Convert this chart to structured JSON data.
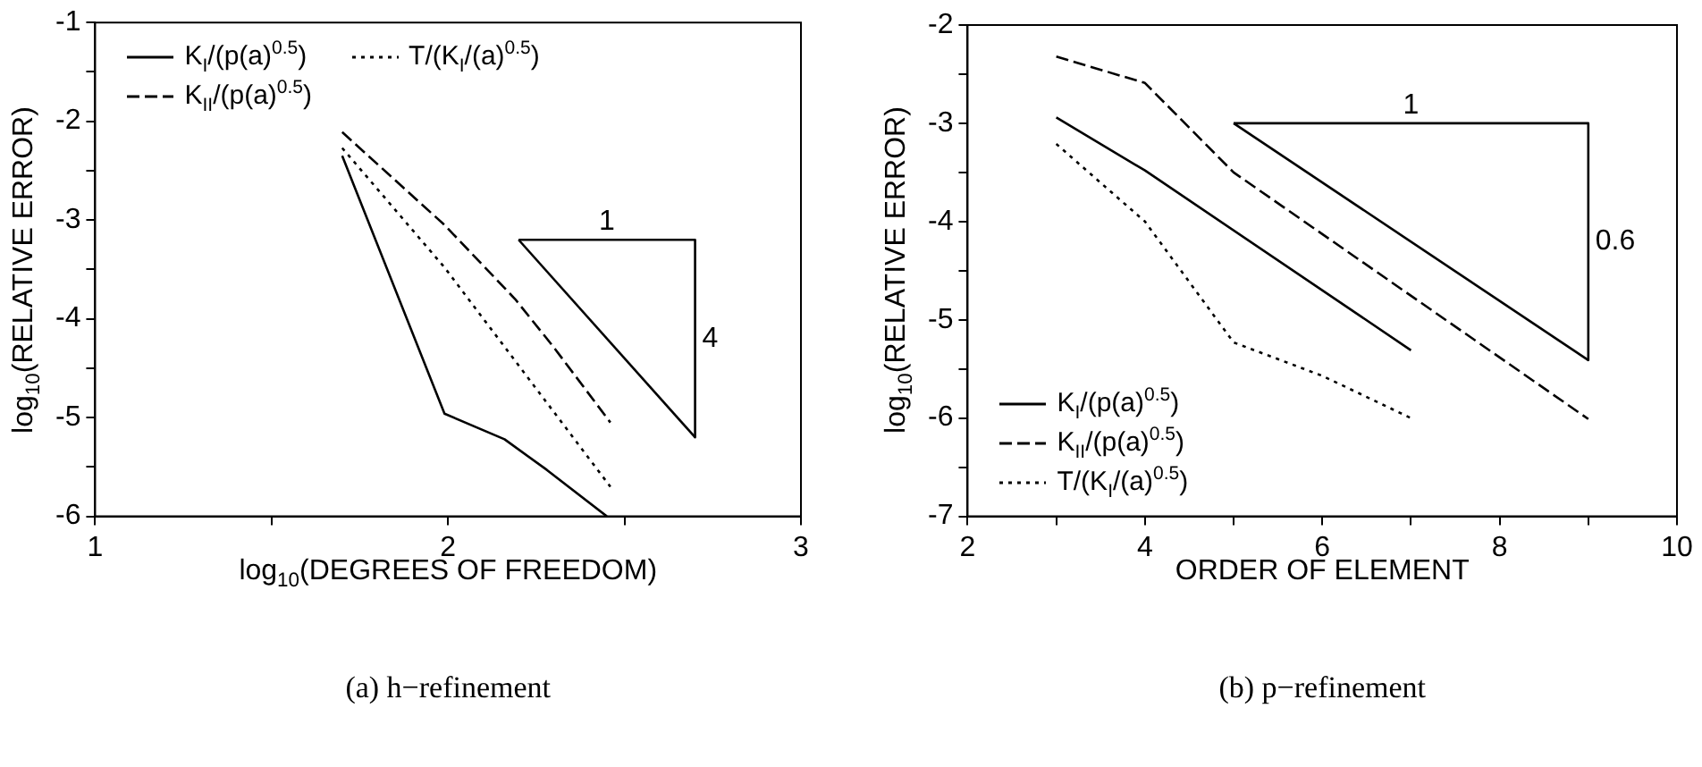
{
  "chart_data": [
    {
      "type": "line",
      "xlabel": "log$_{10}$(DEGREES OF FREEDOM)",
      "ylabel": "log$_{10}$(RELATIVE ERROR)",
      "xlim": [
        1,
        3
      ],
      "ylim": [
        -6,
        -1
      ],
      "xticks": [
        1,
        {
          "value": 1.5,
          "label": null
        },
        2,
        {
          "value": 2.5,
          "label": null
        },
        3
      ],
      "yticks": [
        -6,
        {
          "value": -5.5,
          "label": null
        },
        -5,
        {
          "value": -4.5,
          "label": null
        },
        -4,
        {
          "value": -3.5,
          "label": null
        },
        -3,
        {
          "value": -2.5,
          "label": null
        },
        -2,
        {
          "value": -1.5,
          "label": null
        },
        -1
      ],
      "grid": false,
      "legend": "top left",
      "marker": "none",
      "series": [
        {
          "name": "K$_{I}$/(p(a)$^{0.5}$)",
          "color": "#000000",
          "line_style": "solid",
          "x": [
            1.7,
            1.99,
            2.16,
            2.28,
            2.45
          ],
          "values": [
            -2.35,
            -4.96,
            -5.22,
            -5.53,
            -6.0
          ]
        },
        {
          "name": "K$_{II}$/(p(a)$^{0.5}$)",
          "color": "#000000",
          "line_style": "dashed",
          "x": [
            1.7,
            1.99,
            2.19,
            2.3,
            2.46
          ],
          "values": [
            -2.11,
            -3.05,
            -3.8,
            -4.29,
            -5.05
          ]
        },
        {
          "name": "T/(K$_{I}$/(a)$^{0.5}$)",
          "color": "#000000",
          "line_style": "dotted",
          "x": [
            1.7,
            1.99,
            2.46
          ],
          "values": [
            -2.27,
            -3.48,
            -5.7
          ]
        },
        {
          "color": "#000000",
          "line_style": "solid",
          "x": [
            2.2,
            2.7,
            2.7
          ],
          "values": [
            -3.2,
            -3.2,
            -5.2
          ]
        },
        {
          "color": "#000000",
          "line_style": "solid",
          "x": [
            2.2,
            2.7
          ],
          "values": [
            -3.2,
            -5.2
          ]
        }
      ],
      "annotations": [
        {
          "text": "1",
          "x": 2.45,
          "y": -3.2
        },
        {
          "text": "4",
          "x": 2.7,
          "y": -4.2
        },
        "(a) h−refinement"
      ]
    },
    {
      "type": "line",
      "xlabel": "ORDER OF ELEMENT",
      "ylabel": "log$_{10}$(RELATIVE ERROR)",
      "xlim": [
        2,
        10
      ],
      "ylim": [
        -7,
        -2
      ],
      "xticks": [
        2,
        {
          "value": 3,
          "label": null
        },
        4,
        {
          "value": 5,
          "label": null
        },
        6,
        {
          "value": 7,
          "label": null
        },
        8,
        {
          "value": 9,
          "label": null
        },
        10
      ],
      "yticks": [
        -7,
        {
          "value": -6.5,
          "label": null
        },
        -6,
        {
          "value": -5.5,
          "label": null
        },
        -5,
        {
          "value": -4.5,
          "label": null
        },
        -4,
        {
          "value": -3.5,
          "label": null
        },
        -3,
        {
          "value": -2.5,
          "label": null
        },
        -2
      ],
      "grid": false,
      "legend": "bottom left",
      "marker": "none",
      "series": [
        {
          "name": "K$_{I}$/(p(a)$^{0.5}$)",
          "color": "#000000",
          "line_style": "solid",
          "x": [
            3,
            4,
            7
          ],
          "values": [
            -2.94,
            -3.48,
            -5.31
          ]
        },
        {
          "name": "K$_{II}$/(p(a)$^{0.5}$)",
          "color": "#000000",
          "line_style": "dashed",
          "x": [
            3,
            4,
            5,
            9
          ],
          "values": [
            -2.32,
            -2.59,
            -3.5,
            -6.01
          ]
        },
        {
          "name": "T/(K$_{I}$/(a)$^{0.5}$)",
          "color": "#000000",
          "line_style": "dotted",
          "x": [
            3,
            4,
            5,
            6,
            7
          ],
          "values": [
            -3.21,
            -4.0,
            -5.23,
            -5.57,
            -6.0
          ]
        },
        {
          "color": "#000000",
          "line_style": "solid",
          "x": [
            5,
            9,
            9
          ],
          "values": [
            -3.0,
            -3.0,
            -5.41
          ]
        },
        {
          "color": "#000000",
          "line_style": "solid",
          "x": [
            5,
            9
          ],
          "values": [
            -3.0,
            -5.41
          ]
        }
      ],
      "annotations": [
        {
          "text": "1",
          "x": 7,
          "y": -3.0
        },
        {
          "text": "0.6",
          "x": 9,
          "y": -4.2
        },
        "(b) p−refinement"
      ]
    }
  ]
}
